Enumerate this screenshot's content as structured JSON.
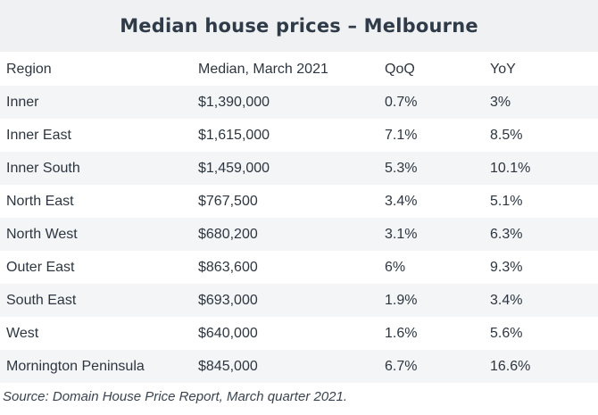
{
  "title": "Median house prices – Melbourne",
  "table": {
    "headers": [
      "Region",
      "Median, March 2021",
      "QoQ",
      "YoY"
    ],
    "rows": [
      [
        "Inner",
        "$1,390,000",
        "0.7%",
        "3%"
      ],
      [
        "Inner East",
        "$1,615,000",
        "7.1%",
        "8.5%"
      ],
      [
        "Inner South",
        "$1,459,000",
        "5.3%",
        "10.1%"
      ],
      [
        "North East",
        "$767,500",
        "3.4%",
        "5.1%"
      ],
      [
        "North West",
        "$680,200",
        "3.1%",
        "6.3%"
      ],
      [
        "Outer East",
        "$863,600",
        "6%",
        "9.3%"
      ],
      [
        "South East",
        "$693,000",
        "1.9%",
        "3.4%"
      ],
      [
        "West",
        "$640,000",
        "1.6%",
        "5.6%"
      ],
      [
        "Mornington Peninsula",
        "$845,000",
        "6.7%",
        "16.6%"
      ]
    ]
  },
  "source": "Source: Domain House Price Report, March quarter 2021."
}
